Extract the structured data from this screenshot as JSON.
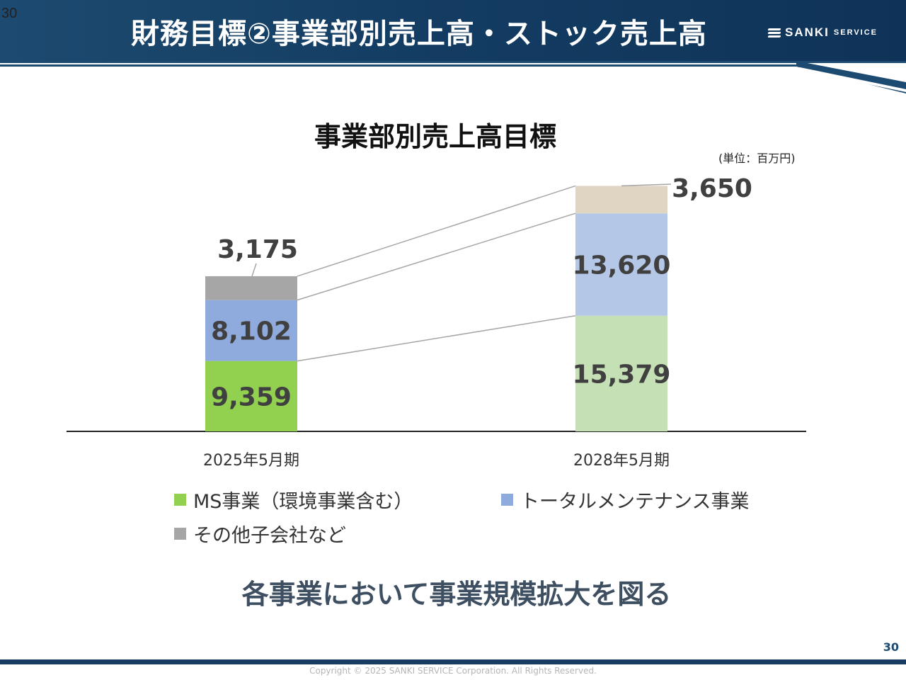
{
  "slide_number_top": "30",
  "header": {
    "title": "財務目標②事業部別売上高・ストック売上高",
    "logo": {
      "brand": "SANKI",
      "sub": "SERVICE"
    }
  },
  "chart_title": "事業部別売上高目標",
  "unit_label": "(単位：百万円)",
  "chart_data": {
    "type": "bar",
    "stacked": true,
    "categories": [
      "2025年5月期",
      "2028年5月期"
    ],
    "series": [
      {
        "name": "MS事業（環境事業含む）",
        "values": [
          9359,
          15379
        ],
        "labels": [
          "9,359",
          "15,379"
        ],
        "colors": [
          "#92d050",
          "#c5e0b4"
        ]
      },
      {
        "name": "トータルメンテナンス事業",
        "values": [
          8102,
          13620
        ],
        "labels": [
          "8,102",
          "13,620"
        ],
        "colors": [
          "#8faadc",
          "#b4c7e7"
        ]
      },
      {
        "name": "その他子会社など",
        "values": [
          3175,
          3650
        ],
        "labels": [
          "3,175",
          "3,650"
        ],
        "colors": [
          "#a6a6a6",
          "#e0d4c3"
        ]
      }
    ],
    "legend_colors": [
      "#92d050",
      "#8faadc",
      "#a6a6a6"
    ],
    "ylim": [
      0,
      33000
    ],
    "title": "事業部別売上高目標"
  },
  "message": "各事業において事業規模拡大を図る",
  "slide_number_bottom": "30",
  "copyright": "Copyright © 2025 SANKI SERVICE Corporation. All Rights Reserved."
}
